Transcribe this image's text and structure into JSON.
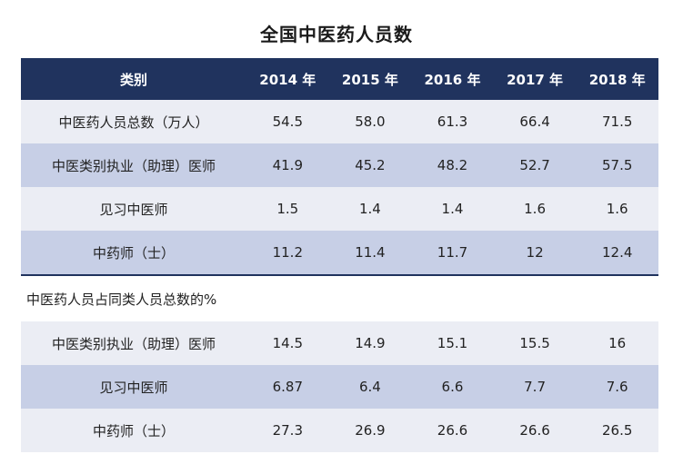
{
  "chart_data": {
    "type": "table",
    "title": "全国中医药人员数",
    "columns": [
      "类别",
      "2014 年",
      "2015 年",
      "2016 年",
      "2017 年",
      "2018 年"
    ],
    "sections": [
      {
        "heading": "",
        "rows": [
          {
            "label": "中医药人员总数（万人）",
            "values": [
              "54.5",
              "58.0",
              "61.3",
              "66.4",
              "71.5"
            ]
          },
          {
            "label": "中医类别执业（助理）医师",
            "values": [
              "41.9",
              "45.2",
              "48.2",
              "52.7",
              "57.5"
            ]
          },
          {
            "label": "见习中医师",
            "values": [
              "1.5",
              "1.4",
              "1.4",
              "1.6",
              "1.6"
            ]
          },
          {
            "label": "中药师（士）",
            "values": [
              "11.2",
              "11.4",
              "11.7",
              "12",
              "12.4"
            ]
          }
        ]
      },
      {
        "heading": "中医药人员占同类人员总数的%",
        "rows": [
          {
            "label": "中医类别执业（助理）医师",
            "values": [
              "14.5",
              "14.9",
              "15.1",
              "15.5",
              "16"
            ]
          },
          {
            "label": "见习中医师",
            "values": [
              "6.87",
              "6.4",
              "6.6",
              "7.7",
              "7.6"
            ]
          },
          {
            "label": "中药师（士）",
            "values": [
              "27.3",
              "26.9",
              "26.6",
              "26.6",
              "26.5"
            ]
          }
        ]
      }
    ]
  }
}
